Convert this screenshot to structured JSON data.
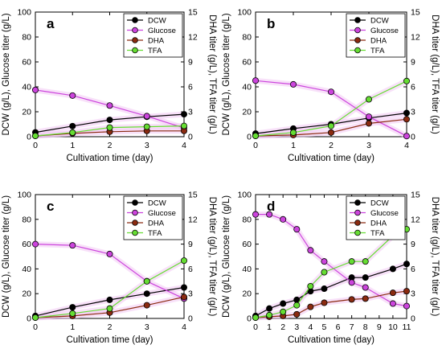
{
  "figure": {
    "legend_entries": [
      {
        "name": "DCW",
        "color": "#000000"
      },
      {
        "name": "Glucose",
        "color": "#cc44dd"
      },
      {
        "name": "DHA",
        "color": "#8b2a10"
      },
      {
        "name": "TFA",
        "color": "#66dd33"
      }
    ],
    "colors": {
      "DCW": "#000000",
      "Glucose": "#cc44dd",
      "DHA": "#8b2a10",
      "TFA": "#66dd33",
      "band": "#f3c8f4"
    }
  },
  "chart_data": [
    {
      "type": "line",
      "panel": "a",
      "xlabel": "Cultivation time (day)",
      "ylabel_left": "DCW (g/L), Glucose titer (g/L)",
      "ylabel_right": "DHA titer (g/L), TFA titer (g/L)",
      "xlim": [
        0,
        4
      ],
      "xticks": [
        0,
        1,
        2,
        3,
        4
      ],
      "ylim_left": [
        0,
        100
      ],
      "yticks_left": [
        0,
        20,
        40,
        60,
        80,
        100
      ],
      "ylim_right": [
        0,
        15
      ],
      "yticks_right": [
        0,
        3,
        6,
        9,
        12,
        15
      ],
      "legend": "top-right",
      "series": [
        {
          "name": "DCW",
          "axis": "left",
          "x": [
            0,
            1,
            2,
            3,
            4
          ],
          "values": [
            3.5,
            8.5,
            13.5,
            16,
            18
          ]
        },
        {
          "name": "Glucose",
          "axis": "left",
          "x": [
            0,
            1,
            2,
            3,
            4
          ],
          "values": [
            37.5,
            33,
            25,
            16.5,
            7
          ]
        },
        {
          "name": "DHA",
          "axis": "right",
          "x": [
            0,
            1,
            2,
            3,
            4
          ],
          "values": [
            0.1,
            0.4,
            0.6,
            0.7,
            0.7
          ]
        },
        {
          "name": "TFA",
          "axis": "right",
          "x": [
            0,
            1,
            2,
            3,
            4
          ],
          "values": [
            0.1,
            0.5,
            1.1,
            1.2,
            1.3
          ]
        }
      ]
    },
    {
      "type": "line",
      "panel": "b",
      "xlabel": "Cultivation time (day)",
      "ylabel_left": "DCW (g/L), Glucose titer (g/L)",
      "ylabel_right": "DHA titer (g/L), TFA titer (g/L)",
      "xlim": [
        0,
        4
      ],
      "xticks": [
        0,
        1,
        2,
        3,
        4
      ],
      "ylim_left": [
        0,
        100
      ],
      "yticks_left": [
        0,
        20,
        40,
        60,
        80,
        100
      ],
      "ylim_right": [
        0,
        15
      ],
      "yticks_right": [
        0,
        3,
        6,
        9,
        12,
        15
      ],
      "legend": "top-right",
      "series": [
        {
          "name": "DCW",
          "axis": "left",
          "x": [
            0,
            1,
            2,
            3,
            4
          ],
          "values": [
            2.5,
            6.5,
            10,
            15,
            19
          ]
        },
        {
          "name": "Glucose",
          "axis": "left",
          "x": [
            0,
            1,
            2,
            3,
            4
          ],
          "values": [
            45,
            42,
            36,
            16,
            0.5
          ]
        },
        {
          "name": "DHA",
          "axis": "right",
          "x": [
            0,
            1,
            2,
            3,
            4
          ],
          "values": [
            0.1,
            0.2,
            0.5,
            1.6,
            2.1
          ]
        },
        {
          "name": "TFA",
          "axis": "right",
          "x": [
            0,
            1,
            2,
            3,
            4
          ],
          "values": [
            0.1,
            0.5,
            1.3,
            4.5,
            6.7
          ]
        }
      ]
    },
    {
      "type": "line",
      "panel": "c",
      "xlabel": "Cultivation time (day)",
      "ylabel_left": "DCW (g/L), Glucose titer (g/L)",
      "ylabel_right": "DHA titer (g/L), TFA titer (g/L)",
      "xlim": [
        0,
        4
      ],
      "xticks": [
        0,
        1,
        2,
        3,
        4
      ],
      "ylim_left": [
        0,
        100
      ],
      "yticks_left": [
        0,
        20,
        40,
        60,
        80,
        100
      ],
      "ylim_right": [
        0,
        15
      ],
      "yticks_right": [
        0,
        3,
        6,
        9,
        12,
        15
      ],
      "legend": "top-right",
      "series": [
        {
          "name": "DCW",
          "axis": "left",
          "x": [
            0,
            1,
            2,
            3,
            4
          ],
          "values": [
            2,
            9,
            15,
            20,
            25
          ]
        },
        {
          "name": "Glucose",
          "axis": "left",
          "x": [
            0,
            1,
            2,
            3,
            4
          ],
          "values": [
            60,
            59,
            52,
            30,
            16
          ]
        },
        {
          "name": "DHA",
          "axis": "right",
          "x": [
            0,
            1,
            2,
            3,
            4
          ],
          "values": [
            0.1,
            0.3,
            0.7,
            1.6,
            2.6
          ]
        },
        {
          "name": "TFA",
          "axis": "right",
          "x": [
            0,
            1,
            2,
            3,
            4
          ],
          "values": [
            0.1,
            0.6,
            1.2,
            4.5,
            7.0
          ]
        }
      ]
    },
    {
      "type": "line",
      "panel": "d",
      "xlabel": "Cultivation time (day)",
      "ylabel_left": "DCW (g/L), Glucose titer (g/L)",
      "ylabel_right": "DHA titer (g/L), TFA titer (g/L)",
      "xlim": [
        0,
        11
      ],
      "xticks": [
        0,
        1,
        2,
        3,
        4,
        5,
        6,
        7,
        8,
        9,
        10,
        11
      ],
      "ylim_left": [
        0,
        100
      ],
      "yticks_left": [
        0,
        20,
        40,
        60,
        80,
        100
      ],
      "ylim_right": [
        0,
        15
      ],
      "yticks_right": [
        0,
        3,
        6,
        9,
        12,
        15
      ],
      "legend": "top-right",
      "series": [
        {
          "name": "DCW",
          "axis": "left",
          "x": [
            0,
            1,
            2,
            3,
            4,
            5,
            7,
            8,
            10,
            11
          ],
          "values": [
            2,
            8,
            12,
            15,
            22,
            24,
            33,
            33,
            40,
            44
          ]
        },
        {
          "name": "Glucose",
          "axis": "left",
          "x": [
            0,
            1,
            2,
            3,
            4,
            5,
            7,
            8,
            10,
            11
          ],
          "values": [
            84,
            84,
            80,
            72,
            55,
            46,
            29,
            25,
            12,
            10
          ]
        },
        {
          "name": "DHA",
          "axis": "right",
          "x": [
            0,
            1,
            2,
            3,
            4,
            5,
            7,
            8,
            10,
            11
          ],
          "values": [
            0.1,
            0.2,
            0.3,
            0.5,
            1.4,
            1.9,
            2.3,
            2.4,
            3.1,
            3.3
          ]
        },
        {
          "name": "TFA",
          "axis": "right",
          "x": [
            0,
            1,
            2,
            3,
            4,
            5,
            7,
            8,
            10,
            11
          ],
          "values": [
            0.1,
            0.4,
            0.8,
            1.6,
            3.9,
            5.6,
            6.9,
            6.9,
            10,
            10.8
          ]
        }
      ]
    }
  ]
}
